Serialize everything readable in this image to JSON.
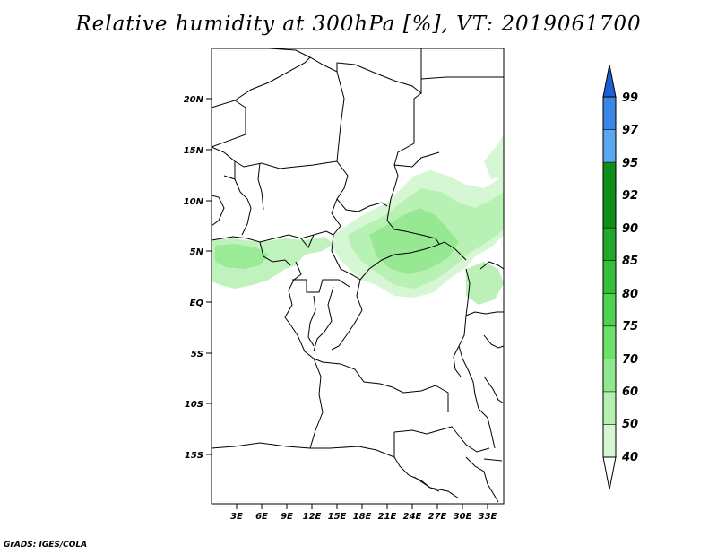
{
  "title": "Relative humidity at 300hPa [%], VT: 2019061700",
  "credit": "GrADS: IGES/COLA",
  "map": {
    "lat_ticks": [
      "20N",
      "15N",
      "10N",
      "5N",
      "EQ",
      "5S",
      "10S",
      "15S"
    ],
    "lon_ticks": [
      "3E",
      "6E",
      "9E",
      "12E",
      "15E",
      "18E",
      "21E",
      "24E",
      "27E",
      "30E",
      "33E"
    ]
  },
  "colorbar": {
    "labels": [
      "99",
      "97",
      "95",
      "92",
      "90",
      "85",
      "80",
      "75",
      "70",
      "60",
      "50",
      "40"
    ],
    "colors": {
      "99": "#1e5fd6",
      "97": "#3c86e6",
      "95": "#5aa8f0",
      "92": "#0f8f1a",
      "90": "#22a82a",
      "85": "#36bf3a",
      "80": "#4fd34f",
      "75": "#6ee06a",
      "70": "#90e88c",
      "60": "#b4f0b0",
      "50": "#d4f7d2",
      "40": "#ecfceb"
    }
  }
}
